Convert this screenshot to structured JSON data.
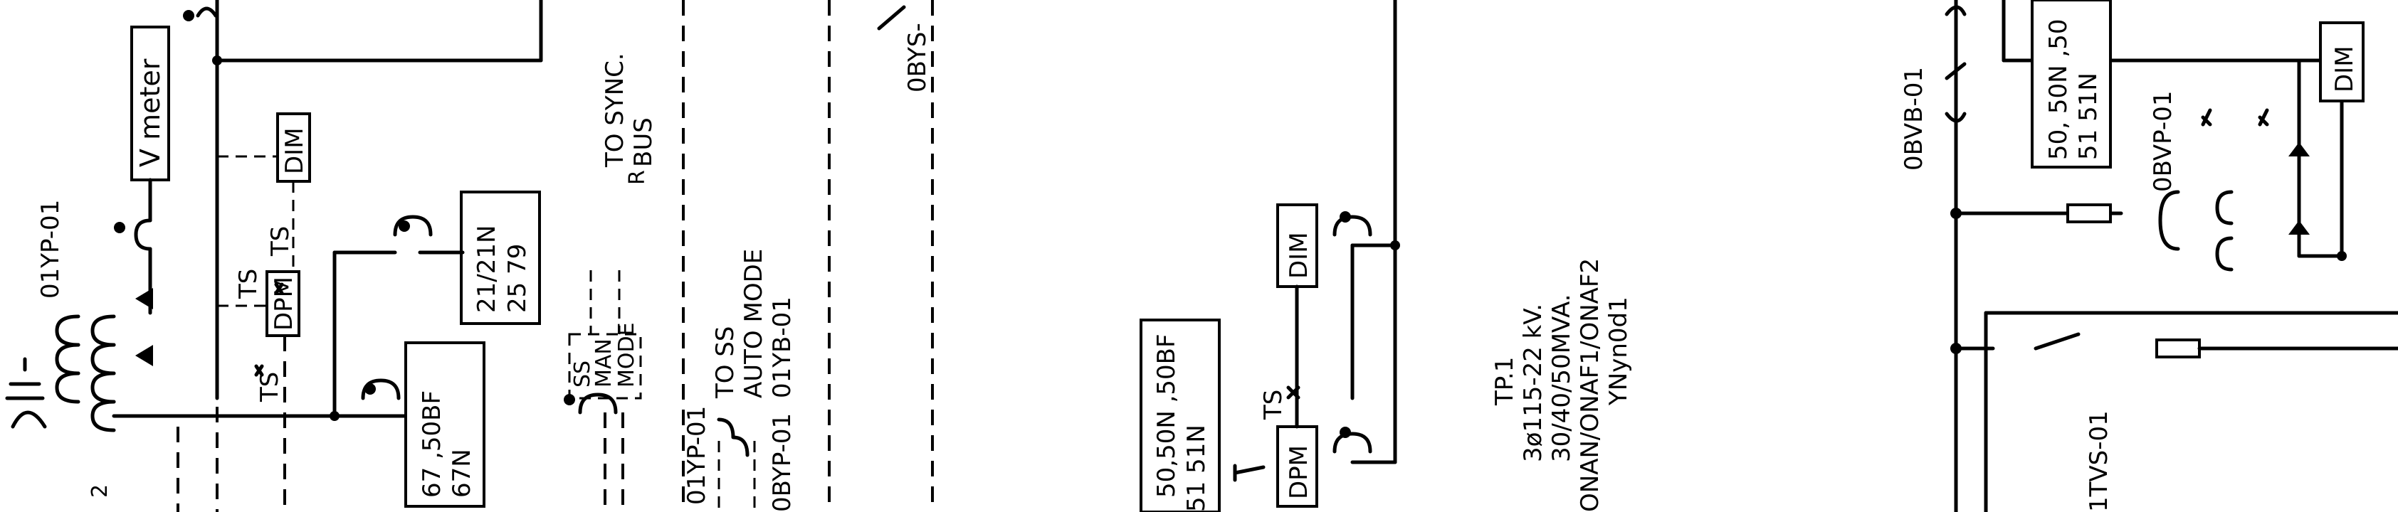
{
  "diagram": {
    "labels": {
      "v_meter": "V meter",
      "yp01": "01YP-01",
      "ts_a": "TS",
      "ts_b": "TS",
      "ts_c": "TS",
      "ts_d": "TS",
      "dpm_left": "DPM",
      "dim_left": "DIM",
      "relay_21_line1": "21/21N",
      "relay_21_line2": "25 79",
      "relay_67_line1": "67 ,50BF",
      "relay_67_line2": "67N",
      "sync_line1": "TO SYNC.",
      "sync_line2": "BUS",
      "ss_mode_1": "SS",
      "ss_mode_2": "MAN",
      "ss_mode_3": "MODE",
      "ss_r": "R",
      "to_ss_1": "TO SS",
      "to_ss_2": "AUTO MODE",
      "to_ss_3": "01YB-01",
      "yp01_b": "01YP-01",
      "byp01": "0BYP-01",
      "bys": "0BYS-",
      "num_2": "2",
      "dim_mid": "DIM",
      "dpm_mid": "DPM",
      "ts_mid": "TS",
      "relay_50_line1": "50,50N ,50BF",
      "relay_50_line2": "51 51N",
      "tp1": "TP.1",
      "tp_volt": "3ø115-22 kV.",
      "tp_mva": "30/40/50MVA.",
      "tp_cool": "ONAN/ONAF1/ONAF2",
      "tp_vec": "YNyn0d1",
      "bvb01": "0BVB-01",
      "bvp01": "0BVP-01",
      "relay_right_line1": "50, 50N ,50",
      "relay_right_line2": "51 51N",
      "dim_right": "DIM",
      "tvs01": "1TVS-01"
    }
  }
}
